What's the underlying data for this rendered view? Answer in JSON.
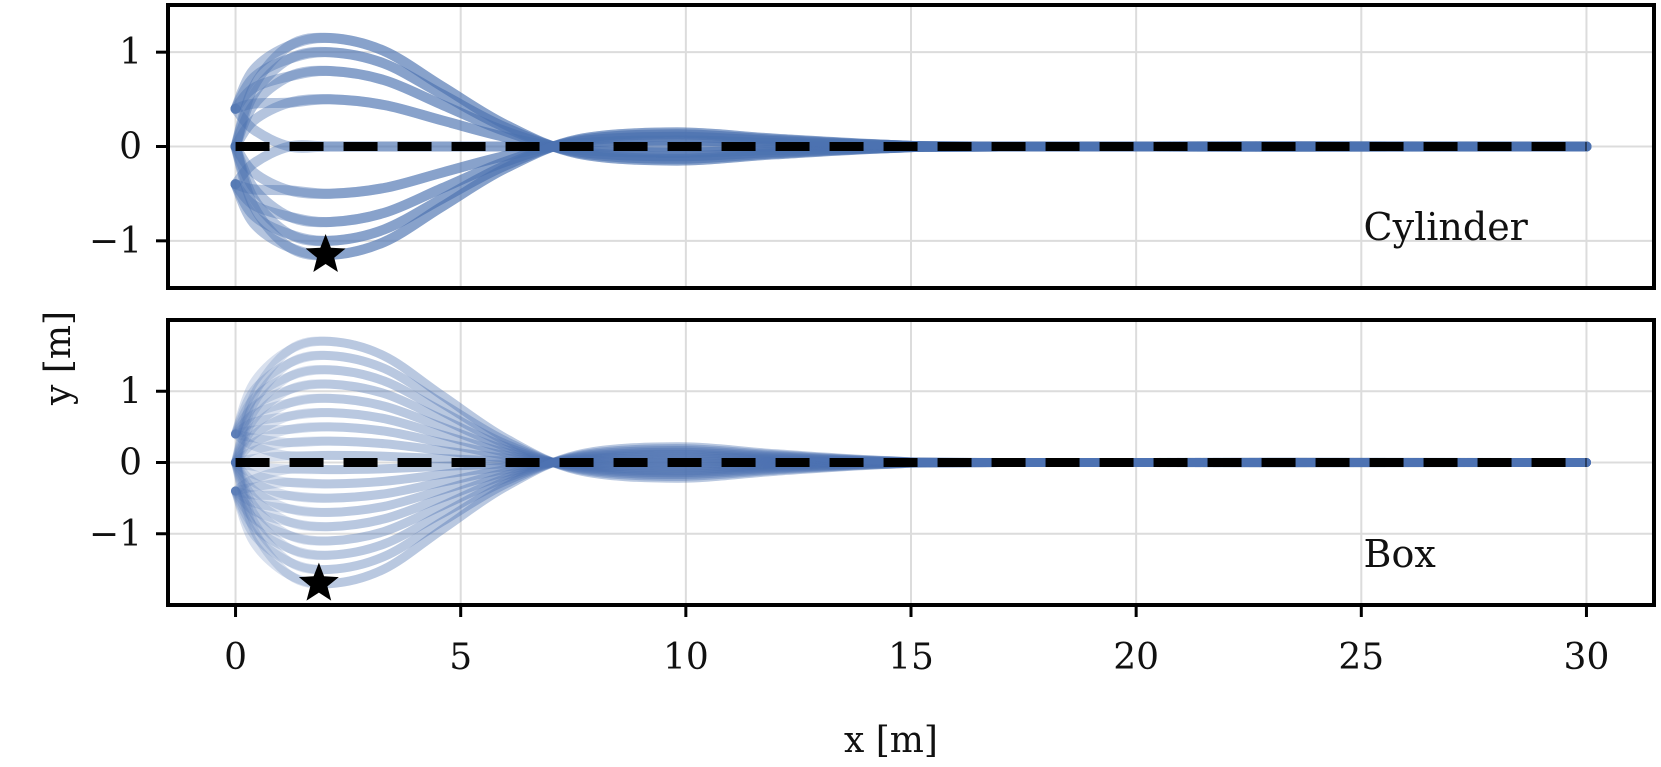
{
  "chart_data": {
    "type": "line",
    "xlabel": "x [m]",
    "ylabel": "y [m]",
    "xlim": [
      -1.5,
      31.5
    ],
    "xticks": [
      0,
      5,
      10,
      15,
      20,
      25,
      30
    ],
    "legend": "none",
    "grid": true,
    "trajectory_color": "#4c72b0",
    "reference_color": "#000000",
    "panels": [
      {
        "label": "Cylinder",
        "ylim": [
          -1.5,
          1.5
        ],
        "yticks": [
          -1,
          0,
          1
        ],
        "reference_line": {
          "x": [
            0,
            30
          ],
          "y": [
            0,
            0
          ]
        },
        "marker": {
          "symbol": "star",
          "x": 2.0,
          "y": -1.15
        },
        "trajectories": {
          "start_y": [
            0.4,
            0.0,
            -0.4
          ],
          "peak_y": [
            1.15,
            1.0,
            0.8,
            0.5,
            0.0,
            -0.5,
            -0.8,
            -1.0,
            -1.15
          ],
          "end_x": 30
        }
      },
      {
        "label": "Box",
        "ylim": [
          -2.0,
          2.0
        ],
        "yticks": [
          -1,
          0,
          1
        ],
        "reference_line": {
          "x": [
            0,
            30
          ],
          "y": [
            0,
            0
          ]
        },
        "marker": {
          "symbol": "star",
          "x": 1.85,
          "y": -1.7
        },
        "trajectories": {
          "start_y": [
            0.4,
            0.0,
            -0.4
          ],
          "peak_y": [
            1.7,
            1.5,
            1.3,
            1.1,
            0.9,
            0.7,
            0.5,
            0.3,
            0.1,
            -0.1,
            -0.3,
            -0.5,
            -0.7,
            -0.9,
            -1.1,
            -1.3,
            -1.5,
            -1.7
          ],
          "end_x": 30
        }
      }
    ]
  }
}
